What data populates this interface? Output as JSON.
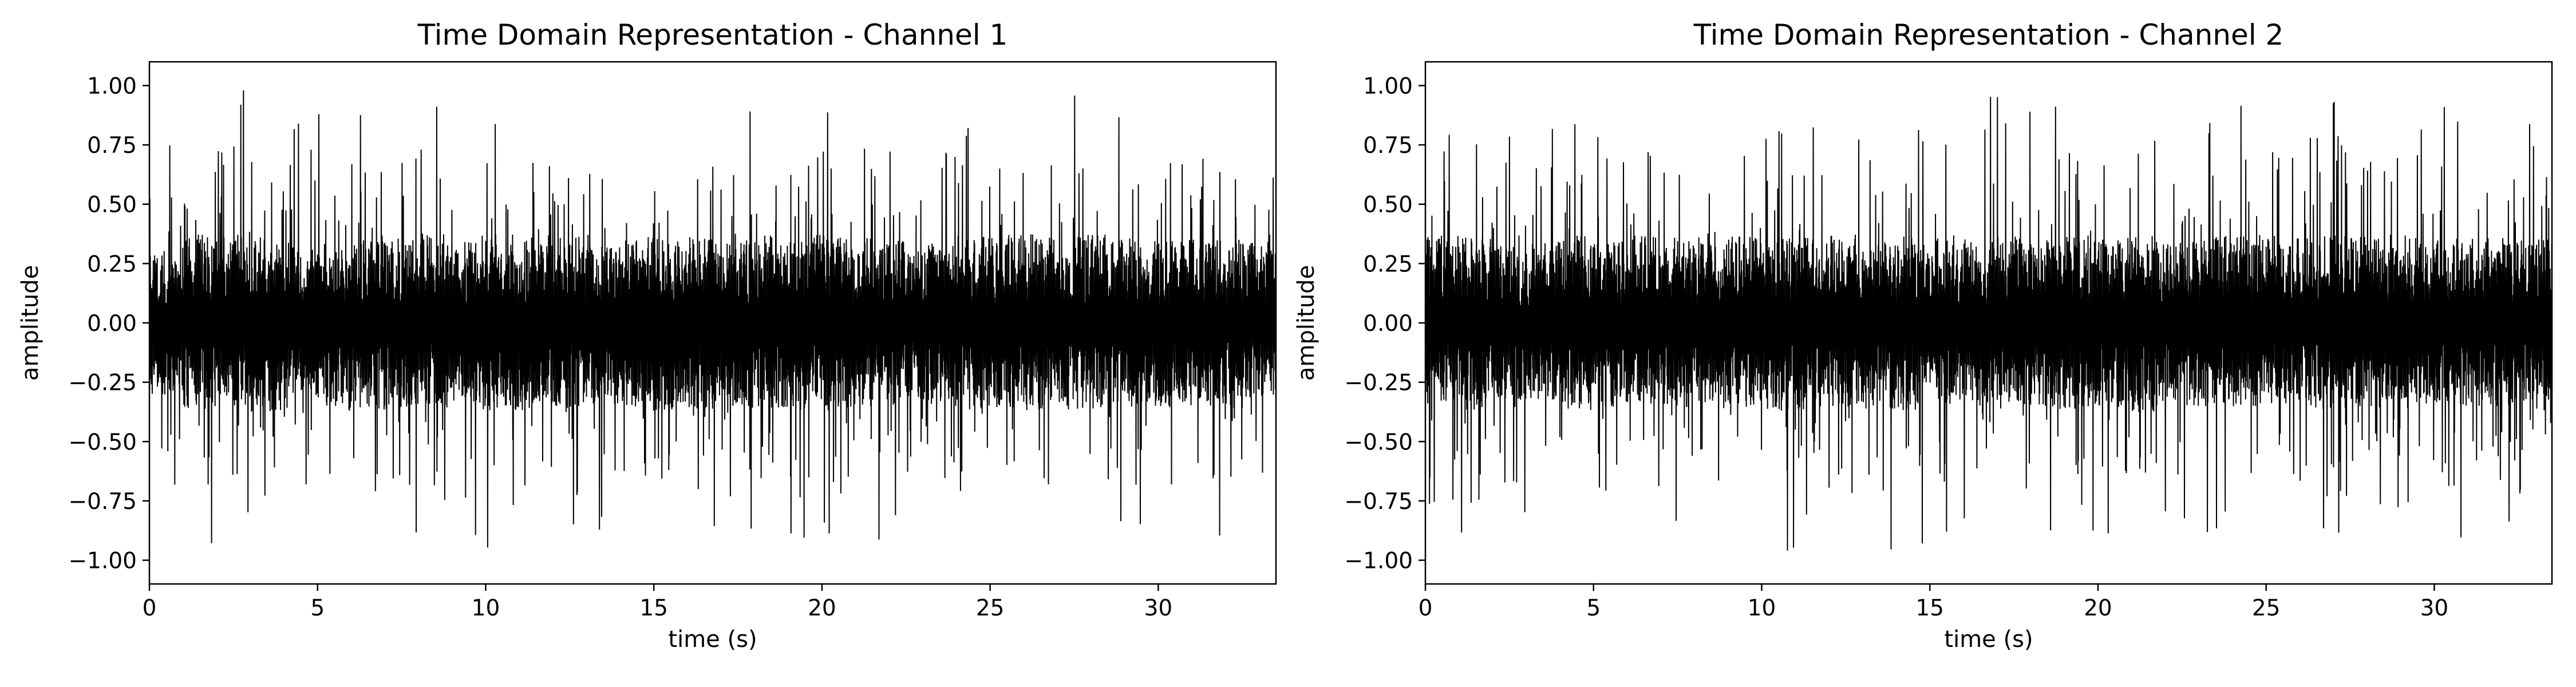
{
  "chart_data": [
    {
      "type": "line",
      "title": "Time Domain Representation - Channel 1",
      "xlabel": "time (s)",
      "ylabel": "amplitude",
      "xlim": [
        0,
        33.5
      ],
      "ylim": [
        -1.1,
        1.1
      ],
      "xticks": [
        0,
        5,
        10,
        15,
        20,
        25,
        30
      ],
      "xtick_labels": [
        "0",
        "5",
        "10",
        "15",
        "20",
        "25",
        "30"
      ],
      "yticks": [
        1.0,
        0.75,
        0.5,
        0.25,
        0.0,
        -0.25,
        -0.5,
        -0.75,
        -1.0
      ],
      "ytick_labels": [
        "1.00",
        "0.75",
        "0.50",
        "0.25",
        "0.00",
        "−0.25",
        "−0.50",
        "−0.75",
        "−1.00"
      ],
      "grid": false,
      "legend": "none",
      "line_color": "#000000",
      "series": [
        {
          "x_start": 0,
          "x_end": 33.5,
          "envelope_max": [
            0.75,
            0.98,
            0.98,
            0.95,
            0.92,
            0.88,
            0.95,
            0.97,
            0.99,
            0.9,
            0.98,
            0.97,
            0.99,
            0.85,
            0.92,
            0.97,
            0.95,
            0.9,
            0.97,
            0.9,
            0.98,
            0.95,
            0.92,
            0.88,
            0.97,
            0.98,
            0.99,
            0.96,
            0.98,
            0.95,
            0.92,
            0.97,
            0.93,
            0.9
          ],
          "envelope_min": [
            -0.8,
            -0.97,
            -0.96,
            -0.99,
            -0.85,
            -0.92,
            -0.98,
            -0.97,
            -0.95,
            -0.9,
            -0.98,
            -0.97,
            -0.99,
            -0.9,
            -0.93,
            -0.98,
            -0.97,
            -0.92,
            -0.95,
            -0.99,
            -0.97,
            -0.96,
            -0.92,
            -0.9,
            -0.98,
            -0.95,
            -0.97,
            -0.96,
            -0.98,
            -0.93,
            -0.97,
            -0.92,
            -0.95,
            -0.85
          ]
        }
      ]
    },
    {
      "type": "line",
      "title": "Time Domain Representation - Channel 2",
      "xlabel": "time (s)",
      "ylabel": "amplitude",
      "xlim": [
        0,
        33.5
      ],
      "ylim": [
        -1.1,
        1.1
      ],
      "xticks": [
        0,
        5,
        10,
        15,
        20,
        25,
        30
      ],
      "xtick_labels": [
        "0",
        "5",
        "10",
        "15",
        "20",
        "25",
        "30"
      ],
      "yticks": [
        1.0,
        0.75,
        0.5,
        0.25,
        0.0,
        -0.25,
        -0.5,
        -0.75,
        -1.0
      ],
      "ytick_labels": [
        "1.00",
        "0.75",
        "0.50",
        "0.25",
        "0.00",
        "−0.25",
        "−0.50",
        "−0.75",
        "−1.00"
      ],
      "grid": false,
      "legend": "none",
      "line_color": "#000000",
      "series": [
        {
          "x_start": 0,
          "x_end": 33.5,
          "envelope_max": [
            0.97,
            0.95,
            0.85,
            0.9,
            0.97,
            0.92,
            0.98,
            0.95,
            0.9,
            0.97,
            0.99,
            0.95,
            0.98,
            0.9,
            0.96,
            0.97,
            0.93,
            0.98,
            0.92,
            0.97,
            0.95,
            0.97,
            0.9,
            0.96,
            0.97,
            0.98,
            0.95,
            0.97,
            0.96,
            0.98,
            0.92,
            0.96,
            0.97,
            0.93
          ],
          "envelope_min": [
            -0.9,
            -0.97,
            -0.95,
            -0.88,
            -0.97,
            -0.93,
            -0.9,
            -0.96,
            -0.92,
            -0.95,
            -0.98,
            -0.97,
            -0.93,
            -0.96,
            -0.97,
            -0.9,
            -0.95,
            -0.98,
            -0.93,
            -0.97,
            -0.94,
            -0.99,
            -0.92,
            -0.95,
            -0.97,
            -0.93,
            -0.96,
            -0.98,
            -0.94,
            -0.97,
            -0.95,
            -0.92,
            -0.96,
            -0.9
          ]
        }
      ]
    }
  ]
}
